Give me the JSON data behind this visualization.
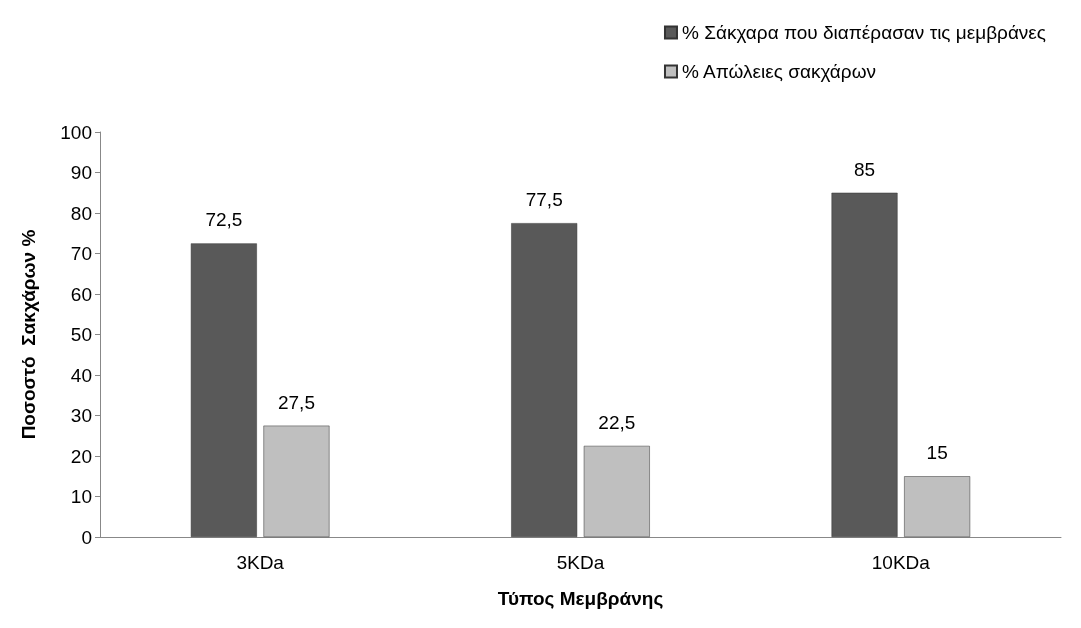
{
  "chart_data": {
    "type": "bar",
    "xlabel": "Τύπος Μεμβράνης",
    "ylabel": "Ποσοστό  Σακχάρων %",
    "categories": [
      "3KDa",
      "5KDa",
      "10KDa"
    ],
    "series": [
      {
        "name": "% Σάκχαρα που διαπέρασαν τις μεμβράνες",
        "color": "#595959",
        "values": [
          72.5,
          77.5,
          85
        ],
        "value_labels": [
          "72,5",
          "77,5",
          "85"
        ]
      },
      {
        "name": "% Απώλειες σακχάρων",
        "color": "#bfbfbf",
        "values": [
          27.5,
          22.5,
          15
        ],
        "value_labels": [
          "27,5",
          "22,5",
          "15"
        ]
      }
    ],
    "ylim": [
      0,
      100
    ],
    "yticks": [
      0,
      10,
      20,
      30,
      40,
      50,
      60,
      70,
      80,
      90,
      100
    ],
    "grid": false,
    "legend": "top right"
  }
}
